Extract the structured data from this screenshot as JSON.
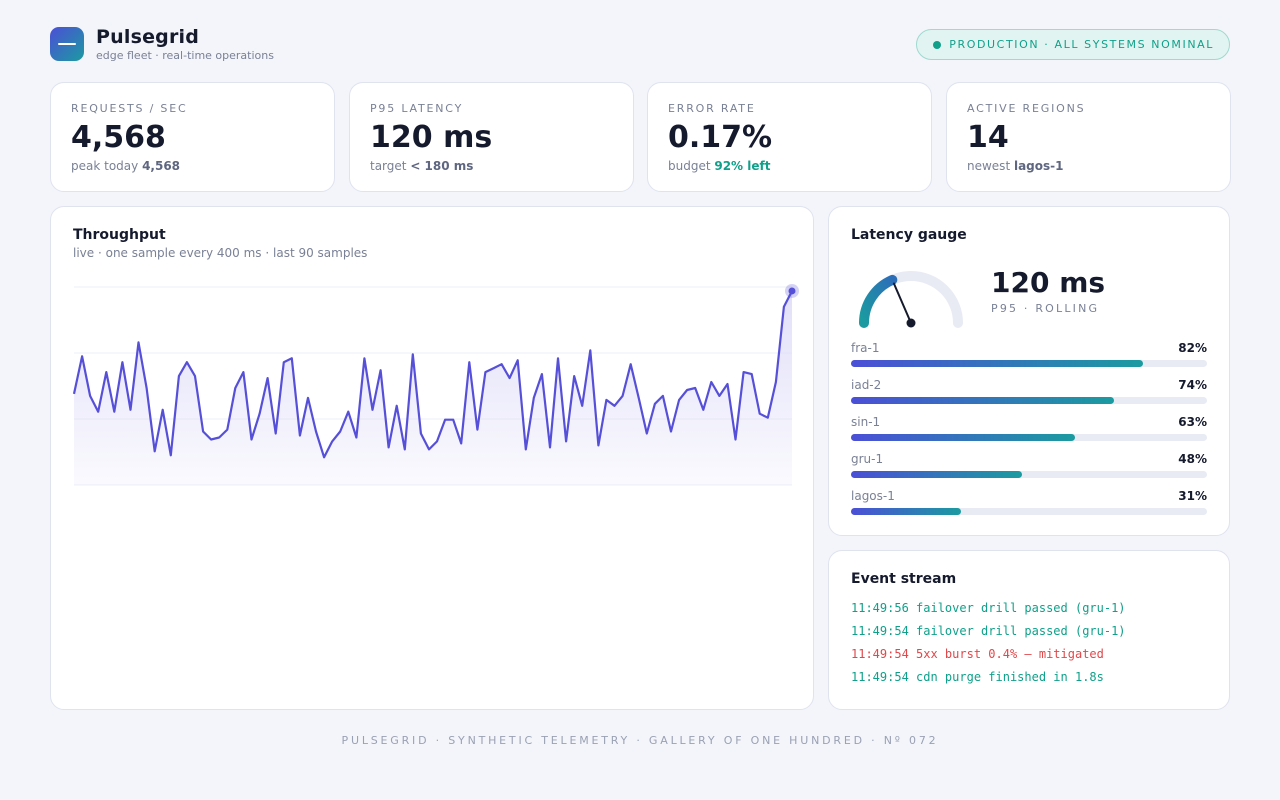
{
  "brand": {
    "title": "Pulsegrid",
    "subtitle": "edge fleet · real-time operations"
  },
  "status": {
    "text": "PRODUCTION · ALL SYSTEMS NOMINAL",
    "color": "#10a08a"
  },
  "stats": [
    {
      "label": "REQUESTS / SEC",
      "value": "4,568",
      "sub_prefix": "peak today ",
      "sub_value": "4,568"
    },
    {
      "label": "P95 LATENCY",
      "value": "120 ms",
      "sub_prefix": "target ",
      "sub_value": "< 180 ms"
    },
    {
      "label": "ERROR RATE",
      "value": "0.17%",
      "sub_prefix": "budget ",
      "sub_value": "92% left"
    },
    {
      "label": "ACTIVE REGIONS",
      "value": "14",
      "sub_prefix": "newest ",
      "sub_value": "lagos-1"
    }
  ],
  "throughput": {
    "title": "Throughput",
    "subtitle": "live · one sample every 400 ms · last 90 samples"
  },
  "chart_data": {
    "type": "area",
    "title": "Throughput",
    "x_count": 90,
    "values": [
      0.46,
      0.65,
      0.45,
      0.37,
      0.57,
      0.37,
      0.62,
      0.38,
      0.72,
      0.49,
      0.17,
      0.38,
      0.15,
      0.55,
      0.62,
      0.55,
      0.27,
      0.23,
      0.24,
      0.28,
      0.49,
      0.57,
      0.23,
      0.36,
      0.54,
      0.26,
      0.62,
      0.64,
      0.25,
      0.44,
      0.27,
      0.14,
      0.22,
      0.27,
      0.37,
      0.24,
      0.64,
      0.38,
      0.58,
      0.19,
      0.4,
      0.18,
      0.66,
      0.26,
      0.18,
      0.22,
      0.33,
      0.33,
      0.21,
      0.62,
      0.28,
      0.57,
      0.59,
      0.61,
      0.54,
      0.63,
      0.18,
      0.44,
      0.56,
      0.19,
      0.64,
      0.22,
      0.55,
      0.4,
      0.68,
      0.2,
      0.43,
      0.4,
      0.45,
      0.61,
      0.44,
      0.26,
      0.41,
      0.45,
      0.27,
      0.43,
      0.48,
      0.49,
      0.38,
      0.52,
      0.45,
      0.51,
      0.23,
      0.57,
      0.56,
      0.36,
      0.34,
      0.52,
      0.9,
      0.98
    ],
    "ylim": [
      0,
      1
    ],
    "grid": true,
    "colors": {
      "line": "#5650d8",
      "fill": "#dedcf8",
      "grid": "#eceff5"
    }
  },
  "gauge": {
    "title": "Latency gauge",
    "value": "120 ms",
    "caption": "P95 · ROLLING",
    "fraction": 0.37,
    "colors": {
      "arc_start": "#1b9ba0",
      "arc_end": "#2c6fb8",
      "track": "#e8ebf4",
      "needle": "#151a2d"
    }
  },
  "regions": [
    {
      "name": "fra-1",
      "pct_label": "82%",
      "pct": 82
    },
    {
      "name": "iad-2",
      "pct_label": "74%",
      "pct": 74
    },
    {
      "name": "sin-1",
      "pct_label": "63%",
      "pct": 63
    },
    {
      "name": "gru-1",
      "pct_label": "48%",
      "pct": 48
    },
    {
      "name": "lagos-1",
      "pct_label": "31%",
      "pct": 31
    }
  ],
  "events": {
    "title": "Event stream",
    "items": [
      {
        "text": "11:49:56 failover drill passed (gru-1)",
        "color": "#10a08a"
      },
      {
        "text": "11:49:54 failover drill passed (gru-1)",
        "color": "#10a08a"
      },
      {
        "text": "11:49:54 5xx burst 0.4% — mitigated",
        "color": "#e0484b"
      },
      {
        "text": "11:49:54 cdn purge finished in 1.8s",
        "color": "#10a08a"
      }
    ]
  },
  "footer": "PULSEGRID · SYNTHETIC TELEMETRY · GALLERY OF ONE HUNDRED · Nº 072"
}
